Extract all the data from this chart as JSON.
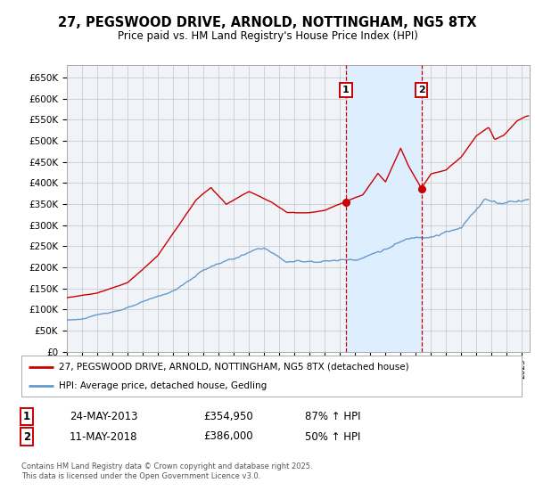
{
  "title": "27, PEGSWOOD DRIVE, ARNOLD, NOTTINGHAM, NG5 8TX",
  "subtitle": "Price paid vs. HM Land Registry's House Price Index (HPI)",
  "ylim": [
    0,
    680000
  ],
  "yticks": [
    0,
    50000,
    100000,
    150000,
    200000,
    250000,
    300000,
    350000,
    400000,
    450000,
    500000,
    550000,
    600000,
    650000
  ],
  "xlim_start": 1995.0,
  "xlim_end": 2025.5,
  "purchase1_x": 2013.39,
  "purchase1_y": 354950,
  "purchase1_label": "1",
  "purchase1_date": "24-MAY-2013",
  "purchase1_price": "£354,950",
  "purchase1_hpi": "87% ↑ HPI",
  "purchase2_x": 2018.36,
  "purchase2_y": 386000,
  "purchase2_label": "2",
  "purchase2_date": "11-MAY-2018",
  "purchase2_price": "£386,000",
  "purchase2_hpi": "50% ↑ HPI",
  "red_color": "#cc0000",
  "blue_color": "#6699cc",
  "shade_color": "#ddeeff",
  "grid_color": "#cccccc",
  "plot_bg": "#f0f4f8",
  "legend1": "27, PEGSWOOD DRIVE, ARNOLD, NOTTINGHAM, NG5 8TX (detached house)",
  "legend2": "HPI: Average price, detached house, Gedling",
  "footnote": "Contains HM Land Registry data © Crown copyright and database right 2025.\nThis data is licensed under the Open Government Licence v3.0."
}
